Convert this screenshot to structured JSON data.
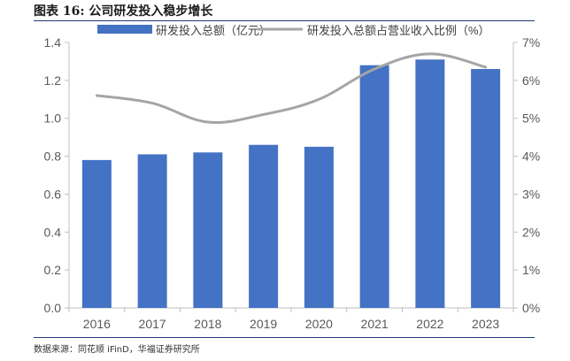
{
  "figure": {
    "title": "图表 16:  公司研发投入稳步增长",
    "source": "数据来源：同花顺 iFinD，华福证券研究所"
  },
  "colors": {
    "bar": "#4472C4",
    "line": "#A5A5A5",
    "axis": "#BFBFBF",
    "text": "#595959",
    "rule": "#1F3A7A"
  },
  "chart_data": {
    "type": "bar",
    "categories": [
      "2016",
      "2017",
      "2018",
      "2019",
      "2020",
      "2021",
      "2022",
      "2023"
    ],
    "series": [
      {
        "name": "研发投入总额（亿元）",
        "type": "bar",
        "axis": "left",
        "values": [
          0.78,
          0.81,
          0.82,
          0.86,
          0.85,
          1.28,
          1.31,
          1.26
        ]
      },
      {
        "name": "研发投入总额占营业收入比例（%）",
        "type": "line",
        "axis": "right",
        "values": [
          5.6,
          5.4,
          4.9,
          5.1,
          5.5,
          6.3,
          6.7,
          6.35
        ]
      }
    ],
    "y_left": {
      "ylim": [
        0,
        1.4
      ],
      "ticks": [
        0.0,
        0.2,
        0.4,
        0.6,
        0.8,
        1.0,
        1.2,
        1.4
      ],
      "tick_labels": [
        "0.0",
        "0.2",
        "0.4",
        "0.6",
        "0.8",
        "1.0",
        "1.2",
        "1.4"
      ]
    },
    "y_right": {
      "ylim": [
        0,
        7
      ],
      "ticks": [
        0,
        1,
        2,
        3,
        4,
        5,
        6,
        7
      ],
      "tick_labels": [
        "0%",
        "1%",
        "2%",
        "3%",
        "4%",
        "5%",
        "6%",
        "7%"
      ]
    },
    "legend_position": "top",
    "grid": false
  }
}
